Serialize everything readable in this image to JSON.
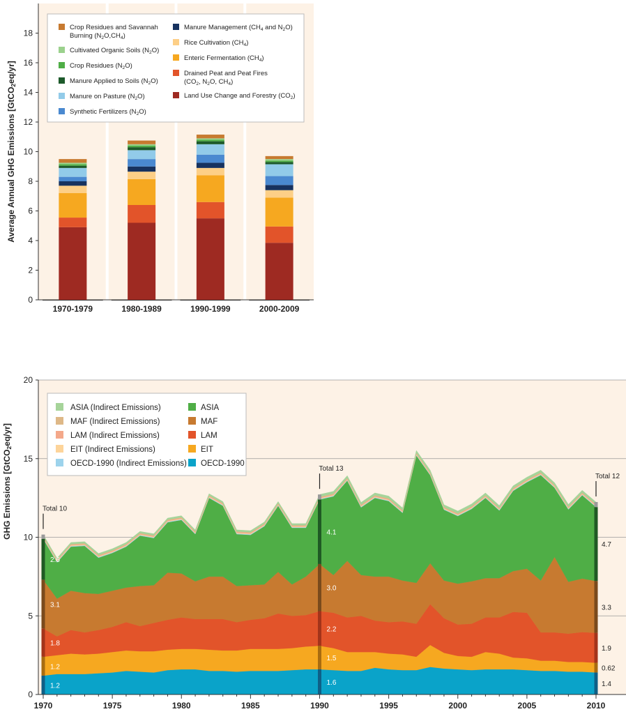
{
  "chart_data": [
    {
      "type": "bar",
      "stacked": true,
      "ylabel": "Average Annual GHG Emissions [GtCO2eq/yr]",
      "ylim": [
        0,
        20
      ],
      "yticks": [
        0,
        2,
        4,
        6,
        8,
        10,
        12,
        14,
        16,
        18
      ],
      "background": "#fdf2e6",
      "categories": [
        "1970-1979",
        "1980-1989",
        "1990-1999",
        "2000-2009"
      ],
      "series": [
        {
          "name": "Land Use Change and Forestry (CO2)",
          "color": "#9e2a22",
          "values": [
            4.9,
            5.2,
            5.5,
            3.85
          ]
        },
        {
          "name": "Drained Peat and Peat Fires (CO2, N2O, CH4)",
          "color": "#e2542a",
          "values": [
            0.65,
            1.2,
            1.1,
            1.1
          ]
        },
        {
          "name": "Enteric Fermentation (CH4)",
          "color": "#f6a820",
          "values": [
            1.65,
            1.75,
            1.8,
            1.95
          ]
        },
        {
          "name": "Rice Cultivation (CH4)",
          "color": "#fdcf87",
          "values": [
            0.5,
            0.5,
            0.5,
            0.5
          ]
        },
        {
          "name": "Manure Management (CH4 and N2O)",
          "color": "#17325f",
          "values": [
            0.3,
            0.35,
            0.35,
            0.35
          ]
        },
        {
          "name": "Synthetic Fertilizers (N2O)",
          "color": "#4a89d0",
          "values": [
            0.3,
            0.5,
            0.55,
            0.6
          ]
        },
        {
          "name": "Manure on Pasture (N2O)",
          "color": "#92cbe9",
          "values": [
            0.6,
            0.6,
            0.7,
            0.8
          ]
        },
        {
          "name": "Manure Applied to Soils (N2O)",
          "color": "#1d5a2b",
          "values": [
            0.15,
            0.2,
            0.2,
            0.15
          ]
        },
        {
          "name": "Crop Residues (N2O)",
          "color": "#4fae46",
          "values": [
            0.1,
            0.1,
            0.1,
            0.1
          ]
        },
        {
          "name": "Cultivated Organic Soils (N2O)",
          "color": "#9bd18d",
          "values": [
            0.1,
            0.1,
            0.1,
            0.1
          ]
        },
        {
          "name": "Crop Residues and Savannah Burning (N2O,CH4)",
          "color": "#c77a30",
          "values": [
            0.25,
            0.25,
            0.25,
            0.2
          ]
        }
      ],
      "legend": {
        "placement": "top",
        "left_column": [
          {
            "lines": [
              "Crop Residues and Savannah",
              "Burning (N₂O,CH₄)"
            ],
            "color": "#c77a30"
          },
          {
            "lines": [
              "Cultivated Organic Soils (N₂O)"
            ],
            "color": "#9bd18d"
          },
          {
            "lines": [
              "Crop Residues (N₂O)"
            ],
            "color": "#4fae46"
          },
          {
            "lines": [
              "Manure Applied to Soils (N₂O)"
            ],
            "color": "#1d5a2b"
          },
          {
            "lines": [
              "Manure on Pasture (N₂O)"
            ],
            "color": "#92cbe9"
          },
          {
            "lines": [
              "Synthetic Fertilizers (N₂O)"
            ],
            "color": "#4a89d0"
          }
        ],
        "right_column": [
          {
            "lines": [
              "Manure Management (CH₄ and N₂O)"
            ],
            "color": "#17325f"
          },
          {
            "lines": [
              "Rice Cultivation (CH₄)"
            ],
            "color": "#fdcf87"
          },
          {
            "lines": [
              "Enteric Fermentation (CH₄)"
            ],
            "color": "#f6a820"
          },
          {
            "lines": [
              "Drained Peat and Peat Fires",
              "(CO₂, N₂O, CH₄)"
            ],
            "color": "#e2542a"
          },
          {
            "lines": [
              "Land Use Change and Forestry (CO₂)"
            ],
            "color": "#9e2a22"
          }
        ]
      }
    },
    {
      "type": "area",
      "stacked": true,
      "ylabel": "GHG Emissions [GtCO2eq/yr]",
      "xlim": [
        1970,
        2010
      ],
      "ylim": [
        0,
        20
      ],
      "yticks": [
        0,
        5,
        10,
        15,
        20
      ],
      "xticks": [
        1970,
        1975,
        1980,
        1985,
        1990,
        1995,
        2000,
        2005,
        2010
      ],
      "grid": "horizontal",
      "background": "#fdf2e6",
      "x": [
        1970,
        1971,
        1972,
        1973,
        1974,
        1975,
        1976,
        1977,
        1978,
        1979,
        1980,
        1981,
        1982,
        1983,
        1984,
        1985,
        1986,
        1987,
        1988,
        1989,
        1990,
        1991,
        1992,
        1993,
        1994,
        1995,
        1996,
        1997,
        1998,
        1999,
        2000,
        2001,
        2002,
        2003,
        2004,
        2005,
        2006,
        2007,
        2008,
        2009,
        2010
      ],
      "series": [
        {
          "name": "OECD-1990",
          "color": "#0aa3c9",
          "values": [
            1.2,
            1.3,
            1.3,
            1.3,
            1.35,
            1.4,
            1.5,
            1.45,
            1.4,
            1.55,
            1.6,
            1.6,
            1.5,
            1.5,
            1.45,
            1.5,
            1.5,
            1.5,
            1.55,
            1.6,
            1.6,
            1.55,
            1.5,
            1.5,
            1.7,
            1.6,
            1.55,
            1.55,
            1.75,
            1.65,
            1.6,
            1.55,
            1.6,
            1.6,
            1.6,
            1.55,
            1.5,
            1.5,
            1.45,
            1.45,
            1.4
          ]
        },
        {
          "name": "EIT",
          "color": "#f6a820",
          "values": [
            1.2,
            1.2,
            1.3,
            1.25,
            1.25,
            1.3,
            1.3,
            1.3,
            1.35,
            1.3,
            1.3,
            1.3,
            1.35,
            1.3,
            1.35,
            1.4,
            1.4,
            1.4,
            1.4,
            1.45,
            1.5,
            1.4,
            1.2,
            1.2,
            1.0,
            1.0,
            1.0,
            0.85,
            1.4,
            1.0,
            0.85,
            0.85,
            1.1,
            1.0,
            0.75,
            0.75,
            0.65,
            0.65,
            0.62,
            0.62,
            0.62
          ]
        },
        {
          "name": "LAM",
          "color": "#e2542a",
          "values": [
            1.8,
            1.2,
            1.5,
            1.4,
            1.5,
            1.6,
            1.8,
            1.6,
            1.8,
            1.9,
            2.0,
            1.9,
            1.95,
            2.0,
            1.8,
            1.85,
            1.95,
            2.25,
            2.05,
            2.0,
            2.2,
            2.25,
            2.2,
            2.3,
            2.0,
            2.0,
            2.1,
            2.1,
            2.6,
            2.2,
            2.0,
            2.1,
            2.2,
            2.3,
            2.9,
            2.9,
            1.8,
            1.8,
            1.8,
            1.9,
            1.9
          ]
        },
        {
          "name": "MAF",
          "color": "#c77a30",
          "values": [
            3.1,
            2.4,
            2.5,
            2.5,
            2.3,
            2.3,
            2.2,
            2.55,
            2.4,
            3.0,
            2.8,
            2.4,
            2.7,
            2.7,
            2.3,
            2.2,
            2.15,
            2.65,
            2.0,
            2.45,
            3.0,
            2.4,
            3.6,
            2.6,
            2.8,
            2.9,
            2.6,
            2.6,
            2.6,
            2.4,
            2.6,
            2.7,
            2.5,
            2.5,
            2.6,
            2.8,
            3.3,
            4.8,
            3.3,
            3.4,
            3.3
          ]
        },
        {
          "name": "ASIA",
          "color": "#4fae46",
          "values": [
            2.6,
            2.3,
            2.8,
            3.0,
            2.3,
            2.4,
            2.6,
            3.2,
            3.0,
            3.2,
            3.4,
            3.0,
            5.0,
            4.5,
            3.3,
            3.2,
            3.7,
            4.2,
            3.6,
            3.1,
            4.1,
            5.0,
            5.1,
            4.3,
            5.0,
            4.8,
            4.3,
            8.1,
            5.6,
            4.5,
            4.3,
            4.6,
            5.1,
            4.3,
            5.1,
            5.5,
            6.7,
            4.4,
            4.6,
            5.3,
            4.7
          ]
        },
        {
          "name": "OECD-1990 (Indirect Emissions)",
          "color": "#9dd3ec",
          "values": [
            0.04,
            0.04,
            0.04,
            0.04,
            0.04,
            0.04,
            0.04,
            0.04,
            0.04,
            0.04,
            0.04,
            0.04,
            0.04,
            0.04,
            0.04,
            0.04,
            0.04,
            0.04,
            0.04,
            0.04,
            0.04,
            0.04,
            0.04,
            0.04,
            0.04,
            0.04,
            0.04,
            0.04,
            0.04,
            0.04,
            0.04,
            0.04,
            0.04,
            0.04,
            0.04,
            0.04,
            0.04,
            0.04,
            0.04,
            0.04,
            0.04
          ]
        },
        {
          "name": "EIT (Indirect Emissions)",
          "color": "#fdd49a",
          "values": [
            0.04,
            0.04,
            0.04,
            0.04,
            0.04,
            0.04,
            0.04,
            0.04,
            0.04,
            0.04,
            0.04,
            0.04,
            0.04,
            0.04,
            0.04,
            0.04,
            0.04,
            0.04,
            0.04,
            0.04,
            0.04,
            0.04,
            0.04,
            0.04,
            0.04,
            0.04,
            0.04,
            0.04,
            0.04,
            0.04,
            0.04,
            0.04,
            0.04,
            0.04,
            0.04,
            0.04,
            0.04,
            0.04,
            0.04,
            0.04,
            0.04
          ]
        },
        {
          "name": "LAM (Indirect Emissions)",
          "color": "#f4a88a",
          "values": [
            0.04,
            0.04,
            0.04,
            0.04,
            0.04,
            0.04,
            0.04,
            0.04,
            0.04,
            0.04,
            0.04,
            0.04,
            0.04,
            0.04,
            0.04,
            0.04,
            0.04,
            0.04,
            0.04,
            0.04,
            0.04,
            0.04,
            0.04,
            0.04,
            0.04,
            0.04,
            0.04,
            0.04,
            0.04,
            0.04,
            0.04,
            0.04,
            0.04,
            0.04,
            0.04,
            0.04,
            0.04,
            0.04,
            0.04,
            0.04,
            0.04
          ]
        },
        {
          "name": "MAF (Indirect Emissions)",
          "color": "#deb887",
          "values": [
            0.05,
            0.05,
            0.05,
            0.05,
            0.05,
            0.05,
            0.05,
            0.05,
            0.05,
            0.05,
            0.05,
            0.05,
            0.05,
            0.05,
            0.05,
            0.05,
            0.05,
            0.05,
            0.05,
            0.05,
            0.05,
            0.05,
            0.05,
            0.05,
            0.05,
            0.05,
            0.05,
            0.05,
            0.05,
            0.05,
            0.05,
            0.05,
            0.05,
            0.05,
            0.05,
            0.05,
            0.05,
            0.05,
            0.05,
            0.05,
            0.05
          ]
        },
        {
          "name": "ASIA (Indirect Emissions)",
          "color": "#a6d49a",
          "values": [
            0.1,
            0.1,
            0.1,
            0.1,
            0.1,
            0.1,
            0.1,
            0.1,
            0.1,
            0.1,
            0.1,
            0.1,
            0.1,
            0.1,
            0.1,
            0.1,
            0.1,
            0.1,
            0.1,
            0.1,
            0.15,
            0.15,
            0.15,
            0.15,
            0.15,
            0.15,
            0.15,
            0.15,
            0.15,
            0.15,
            0.15,
            0.15,
            0.15,
            0.15,
            0.15,
            0.15,
            0.15,
            0.15,
            0.15,
            0.15,
            0.15
          ]
        }
      ],
      "year_labels": [
        {
          "year": 1970,
          "total": "Total 10",
          "labels": [
            "1.2",
            "1.2",
            "1.8",
            "3.1",
            "2.6"
          ]
        },
        {
          "year": 1990,
          "total": "Total 13",
          "labels": [
            "1.6",
            "1.5",
            "2.2",
            "3.0",
            "4.1"
          ]
        },
        {
          "year": 2010,
          "total": "Total 12",
          "labels": [
            "1.4",
            "0.62",
            "1.9",
            "3.3",
            "4.7"
          ]
        }
      ],
      "legend": {
        "placement": "top-left",
        "left_column": [
          {
            "label": "ASIA (Indirect Emissions)",
            "color": "#a6d49a"
          },
          {
            "label": "MAF (Indirect Emissions)",
            "color": "#deb887"
          },
          {
            "label": "LAM (Indirect Emissions)",
            "color": "#f4a88a"
          },
          {
            "label": "EIT (Indirect Emissions)",
            "color": "#fdd49a"
          },
          {
            "label": "OECD-1990 (Indirect Emissions)",
            "color": "#9dd3ec"
          }
        ],
        "right_column": [
          {
            "label": "ASIA",
            "color": "#4fae46"
          },
          {
            "label": "MAF",
            "color": "#c77a30"
          },
          {
            "label": "LAM",
            "color": "#e2542a"
          },
          {
            "label": "EIT",
            "color": "#f6a820"
          },
          {
            "label": "OECD-1990",
            "color": "#0aa3c9"
          }
        ]
      }
    }
  ]
}
